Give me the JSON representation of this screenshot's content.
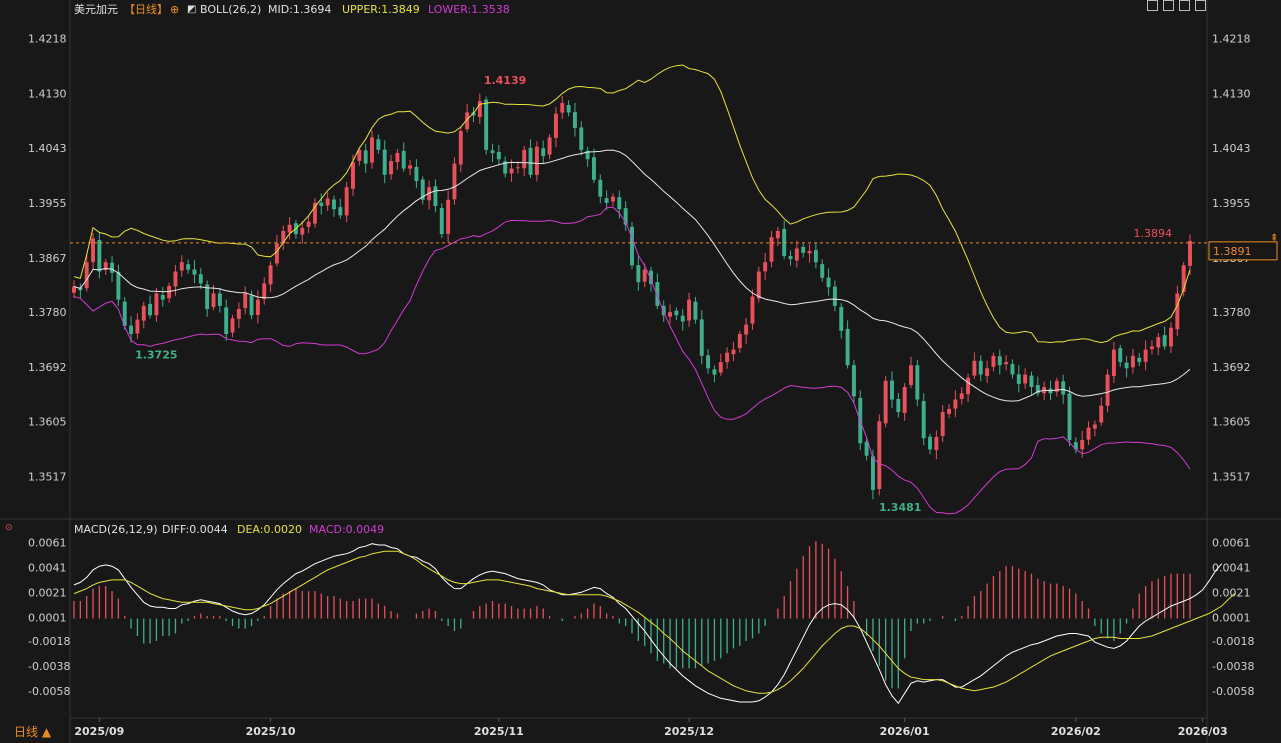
{
  "header": {
    "symbol": "美元加元",
    "period": "【日线】",
    "indicator_icon": "boll-indicator-icon",
    "boll_label": "BOLL(26,2)",
    "boll_mid": "MID:1.3694",
    "boll_upper": "UPPER:1.3849",
    "boll_lower": "LOWER:1.3538"
  },
  "toolbar_icons": [
    "crosshair-icon",
    "zoom-icon",
    "restore-icon",
    "scroll-end-icon"
  ],
  "macd": {
    "label": "MACD(26,12,9)",
    "diff": "DIFF:0.0044",
    "dea": "DEA:0.0020",
    "macd": "MACD:0.0049"
  },
  "period_button": "日线 ▲",
  "colors": {
    "up": "#e8505b",
    "down": "#3fae8c",
    "mid": "#e8e8e8",
    "upper": "#e6e236",
    "lower": "#d33bd3",
    "diff": "#ffffff",
    "dea": "#e6e236",
    "current_price": "#f08c1e"
  },
  "chart_data": [
    {
      "type": "candlestick",
      "title": "美元加元",
      "y_ticks": [
        "1.4218",
        "1.4130",
        "1.4043",
        "1.3955",
        "1.3867",
        "1.3780",
        "1.3692",
        "1.3605",
        "1.3517"
      ],
      "ylim": [
        1.3455,
        1.4248
      ],
      "x_ticks": [
        "2025/09",
        "2025/10",
        "2025/11",
        "2025/12",
        "2026/01",
        "2026/02",
        "2026/03"
      ],
      "annotations": {
        "high": "1.4139",
        "low_1": "1.3725",
        "low_2": "1.3481",
        "last": "1.3894"
      },
      "current_price": "1.3891",
      "current_price_value": 1.3891,
      "close": [
        1.3821,
        1.3815,
        1.386,
        1.3898,
        1.3845,
        1.386,
        1.3843,
        1.38,
        1.3758,
        1.3745,
        1.3768,
        1.379,
        1.3775,
        1.381,
        1.38,
        1.3822,
        1.3845,
        1.386,
        1.3848,
        1.384,
        1.3826,
        1.3785,
        1.381,
        1.379,
        1.3745,
        1.377,
        1.3785,
        1.381,
        1.3775,
        1.38,
        1.3826,
        1.3855,
        1.389,
        1.391,
        1.392,
        1.3905,
        1.3915,
        1.3925,
        1.3955,
        1.395,
        1.3962,
        1.3945,
        1.3935,
        1.398,
        1.402,
        1.404,
        1.4018,
        1.406,
        1.404,
        1.4,
        1.4022,
        1.4035,
        1.401,
        1.4015,
        1.399,
        1.396,
        1.398,
        1.395,
        1.3905,
        1.396,
        1.4018,
        1.407,
        1.41,
        1.4095,
        1.4118,
        1.404,
        1.4035,
        1.4025,
        1.4002,
        1.401,
        1.4012,
        1.404,
        1.4,
        1.4045,
        1.403,
        1.406,
        1.4098,
        1.4115,
        1.41,
        1.4075,
        1.404,
        1.4025,
        1.3992,
        1.3965,
        1.3955,
        1.3965,
        1.3945,
        1.392,
        1.3855,
        1.3828,
        1.3848,
        1.3825,
        1.379,
        1.3775,
        1.378,
        1.3775,
        1.3765,
        1.38,
        1.3768,
        1.371,
        1.369,
        1.368,
        1.37,
        1.3715,
        1.372,
        1.3745,
        1.376,
        1.3805,
        1.3845,
        1.386,
        1.39,
        1.391,
        1.387,
        1.3865,
        1.3882,
        1.3875,
        1.3878,
        1.386,
        1.3835,
        1.382,
        1.379,
        1.375,
        1.3695,
        1.3645,
        1.357,
        1.355,
        1.3495,
        1.3605,
        1.367,
        1.364,
        1.362,
        1.366,
        1.3695,
        1.364,
        1.3578,
        1.356,
        1.358,
        1.362,
        1.3625,
        1.364,
        1.365,
        1.3675,
        1.3702,
        1.368,
        1.369,
        1.371,
        1.3695,
        1.37,
        1.368,
        1.3665,
        1.368,
        1.366,
        1.365,
        1.366,
        1.365,
        1.367,
        1.3648,
        1.3575,
        1.356,
        1.3575,
        1.3595,
        1.36,
        1.363,
        1.368,
        1.372,
        1.37,
        1.369,
        1.371,
        1.37,
        1.372,
        1.3725,
        1.374,
        1.3725,
        1.3755,
        1.381,
        1.3855,
        1.3894
      ]
    },
    {
      "type": "bar",
      "title": "MACD(26,12,9)",
      "y_ticks": [
        "0.0061",
        "0.0041",
        "0.0021",
        "0.0001",
        "-0.0018",
        "-0.0038",
        "-0.0058"
      ],
      "ylim": [
        -0.0075,
        0.0067
      ],
      "x_ticks": [
        "2025/09",
        "2025/10",
        "2025/11",
        "2025/12",
        "2026/01",
        "2026/02",
        "2026/03"
      ],
      "series": [
        {
          "name": "DIFF",
          "values": [
            0.0027,
            0.0029,
            0.0033,
            0.0039,
            0.0042,
            0.0043,
            0.0042,
            0.0039,
            0.0032,
            0.0025,
            0.0019,
            0.0013,
            0.001,
            0.0009,
            0.0009,
            0.0008,
            0.0008,
            0.0011,
            0.0012,
            0.0014,
            0.0015,
            0.0014,
            0.0013,
            0.0012,
            0.0009,
            0.0006,
            0.0004,
            0.0003,
            0.0004,
            0.0007,
            0.0011,
            0.0017,
            0.0023,
            0.0028,
            0.0032,
            0.0036,
            0.0038,
            0.0041,
            0.0044,
            0.0046,
            0.0048,
            0.005,
            0.0051,
            0.0052,
            0.0054,
            0.0057,
            0.0058,
            0.006,
            0.0059,
            0.0059,
            0.0057,
            0.0056,
            0.0052,
            0.005,
            0.0049,
            0.0046,
            0.0044,
            0.004,
            0.0033,
            0.0028,
            0.0024,
            0.0024,
            0.0028,
            0.0032,
            0.0035,
            0.0037,
            0.0038,
            0.0037,
            0.0036,
            0.0034,
            0.0032,
            0.0031,
            0.003,
            0.0029,
            0.0027,
            0.0023,
            0.0021,
            0.0019,
            0.0019,
            0.002,
            0.0021,
            0.0023,
            0.0025,
            0.0024,
            0.002,
            0.0017,
            0.0012,
            0.0008,
            0.0002,
            -0.0004,
            -0.001,
            -0.0017,
            -0.0024,
            -0.003,
            -0.0036,
            -0.0041,
            -0.0046,
            -0.005,
            -0.0054,
            -0.0057,
            -0.006,
            -0.0062,
            -0.0064,
            -0.0065,
            -0.0066,
            -0.0067,
            -0.0067,
            -0.0067,
            -0.0066,
            -0.0063,
            -0.0059,
            -0.0053,
            -0.0045,
            -0.0035,
            -0.0025,
            -0.0015,
            -0.0005,
            0.0003,
            0.0008,
            0.0011,
            0.0012,
            0.0011,
            0.0007,
            0.0001,
            -0.0008,
            -0.0019,
            -0.003,
            -0.0041,
            -0.0053,
            -0.0062,
            -0.0068,
            -0.006,
            -0.0052,
            -0.005,
            -0.0051,
            -0.005,
            -0.0049,
            -0.0049,
            -0.0052,
            -0.0055,
            -0.0055,
            -0.0052,
            -0.0049,
            -0.0046,
            -0.0042,
            -0.0038,
            -0.0034,
            -0.003,
            -0.0027,
            -0.0025,
            -0.0023,
            -0.0021,
            -0.002,
            -0.0018,
            -0.0016,
            -0.0014,
            -0.0013,
            -0.0012,
            -0.0012,
            -0.0013,
            -0.0014,
            -0.0019,
            -0.0021,
            -0.0023,
            -0.0024,
            -0.0022,
            -0.0018,
            -0.0012,
            -0.0006,
            -0.0002,
            0.0001,
            0.0004,
            0.0007,
            0.001,
            0.0012,
            0.0014,
            0.0016,
            0.0019,
            0.0023,
            0.003,
            0.0038,
            0.0044
          ]
        },
        {
          "name": "DEA",
          "values": [
            0.002,
            0.0022,
            0.0024,
            0.0027,
            0.0029,
            0.003,
            0.0031,
            0.0031,
            0.0031,
            0.0029,
            0.0026,
            0.0023,
            0.002,
            0.0018,
            0.0016,
            0.0015,
            0.0014,
            0.0013,
            0.0013,
            0.0013,
            0.0013,
            0.0013,
            0.0012,
            0.0011,
            0.001,
            0.0009,
            0.0008,
            0.0007,
            0.0007,
            0.0008,
            0.001,
            0.0012,
            0.0015,
            0.0018,
            0.0021,
            0.0024,
            0.0027,
            0.003,
            0.0033,
            0.0036,
            0.0039,
            0.0041,
            0.0043,
            0.0045,
            0.0047,
            0.0049,
            0.005,
            0.0052,
            0.0053,
            0.0054,
            0.0054,
            0.0054,
            0.0052,
            0.005,
            0.0047,
            0.0043,
            0.004,
            0.0037,
            0.0034,
            0.0031,
            0.0029,
            0.0028,
            0.0028,
            0.0029,
            0.003,
            0.0031,
            0.0031,
            0.0031,
            0.003,
            0.0029,
            0.0028,
            0.0027,
            0.0026,
            0.0024,
            0.0023,
            0.0022,
            0.0021,
            0.002,
            0.0019,
            0.0019,
            0.0019,
            0.0019,
            0.0019,
            0.0019,
            0.0018,
            0.0016,
            0.0014,
            0.0011,
            0.0008,
            0.0005,
            0.0001,
            -0.0003,
            -0.0007,
            -0.0012,
            -0.0016,
            -0.0021,
            -0.0026,
            -0.003,
            -0.0034,
            -0.0038,
            -0.0042,
            -0.0045,
            -0.0048,
            -0.0051,
            -0.0054,
            -0.0056,
            -0.0058,
            -0.0059,
            -0.006,
            -0.006,
            -0.0059,
            -0.0057,
            -0.0054,
            -0.005,
            -0.0045,
            -0.004,
            -0.0034,
            -0.0028,
            -0.0022,
            -0.0017,
            -0.0012,
            -0.0008,
            -0.0006,
            -0.0006,
            -0.0008,
            -0.0012,
            -0.0017,
            -0.0022,
            -0.0028,
            -0.0034,
            -0.004,
            -0.0044,
            -0.0047,
            -0.0048,
            -0.0049,
            -0.0049,
            -0.0049,
            -0.005,
            -0.0052,
            -0.0054,
            -0.0056,
            -0.0057,
            -0.0058,
            -0.0057,
            -0.0056,
            -0.0055,
            -0.0053,
            -0.0051,
            -0.0048,
            -0.0045,
            -0.0042,
            -0.0039,
            -0.0036,
            -0.0033,
            -0.003,
            -0.0028,
            -0.0026,
            -0.0024,
            -0.0022,
            -0.002,
            -0.0018,
            -0.0016,
            -0.0015,
            -0.0015,
            -0.0015,
            -0.0016,
            -0.0016,
            -0.0016,
            -0.0016,
            -0.0015,
            -0.0014,
            -0.0012,
            -0.001,
            -0.0008,
            -0.0006,
            -0.0004,
            -0.0002,
            0.0,
            0.0002,
            0.0004,
            0.0007,
            0.001,
            0.0015,
            0.002
          ]
        }
      ]
    }
  ]
}
